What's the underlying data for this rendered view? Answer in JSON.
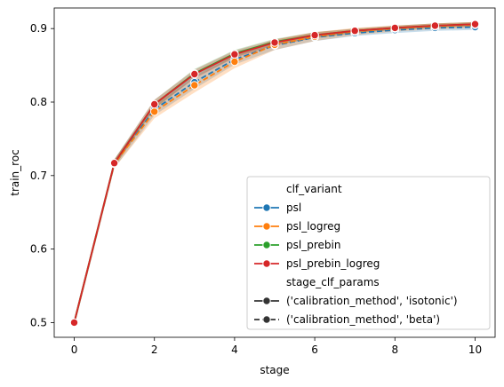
{
  "chart_data": {
    "type": "line",
    "xlabel": "stage",
    "ylabel": "train_roc",
    "xlim": [
      -0.5,
      10.5
    ],
    "ylim": [
      0.48,
      0.928
    ],
    "x_ticks": [
      0,
      2,
      4,
      6,
      8,
      10
    ],
    "y_ticks": [
      0.5,
      0.6,
      0.7,
      0.8,
      0.9
    ],
    "x_tick_labels": [
      "0",
      "2",
      "4",
      "6",
      "8",
      "10"
    ],
    "y_tick_labels": [
      "0.5",
      "0.6",
      "0.7",
      "0.8",
      "0.9"
    ],
    "grid": false,
    "legend_position": "lower-right",
    "legend": {
      "hue_title": "clf_variant",
      "style_title": "stage_clf_params",
      "hue_entries": [
        {
          "label": "psl",
          "color": "#1f77b4"
        },
        {
          "label": "psl_logreg",
          "color": "#ff7f0e"
        },
        {
          "label": "psl_prebin",
          "color": "#2ca02c"
        },
        {
          "label": "psl_prebin_logreg",
          "color": "#d62728"
        }
      ],
      "style_entries": [
        {
          "label": "('calibration_method', 'isotonic')",
          "dash": "solid",
          "color": "#333333"
        },
        {
          "label": "('calibration_method', 'beta')",
          "dash": "dashed",
          "color": "#333333"
        }
      ]
    },
    "series": [
      {
        "name": "psl",
        "color": "#1f77b4",
        "x": [
          0,
          1,
          2,
          3,
          4,
          5,
          6,
          7,
          8,
          9,
          10
        ],
        "values": [
          0.5,
          0.716,
          0.79,
          0.827,
          0.858,
          0.877,
          0.888,
          0.894,
          0.898,
          0.901,
          0.902
        ],
        "band": [
          0.006,
          0.006,
          0.008,
          0.009,
          0.007,
          0.006,
          0.005,
          0.004,
          0.004,
          0.004,
          0.004
        ]
      },
      {
        "name": "psl_logreg",
        "color": "#ff7f0e",
        "x": [
          0,
          1,
          2,
          3,
          4,
          5,
          6,
          7,
          8,
          9,
          10
        ],
        "values": [
          0.5,
          0.716,
          0.787,
          0.823,
          0.855,
          0.878,
          0.889,
          0.896,
          0.9,
          0.903,
          0.905
        ],
        "band": [
          0.006,
          0.006,
          0.009,
          0.01,
          0.009,
          0.007,
          0.006,
          0.005,
          0.004,
          0.004,
          0.004
        ]
      },
      {
        "name": "psl_prebin",
        "color": "#2ca02c",
        "x": [
          0,
          1,
          2,
          3,
          4,
          5,
          6,
          7,
          8,
          9,
          10
        ],
        "values": [
          0.5,
          0.717,
          0.797,
          0.839,
          0.866,
          0.882,
          0.891,
          0.897,
          0.901,
          0.904,
          0.906
        ],
        "band": [
          0.005,
          0.005,
          0.006,
          0.006,
          0.005,
          0.004,
          0.004,
          0.003,
          0.003,
          0.003,
          0.003
        ]
      },
      {
        "name": "psl_prebin_logreg",
        "color": "#d62728",
        "x": [
          0,
          1,
          2,
          3,
          4,
          5,
          6,
          7,
          8,
          9,
          10
        ],
        "values": [
          0.5,
          0.717,
          0.797,
          0.838,
          0.865,
          0.881,
          0.891,
          0.897,
          0.901,
          0.904,
          0.906
        ],
        "band": [
          0.005,
          0.005,
          0.006,
          0.006,
          0.005,
          0.004,
          0.004,
          0.003,
          0.003,
          0.003,
          0.003
        ]
      }
    ]
  }
}
